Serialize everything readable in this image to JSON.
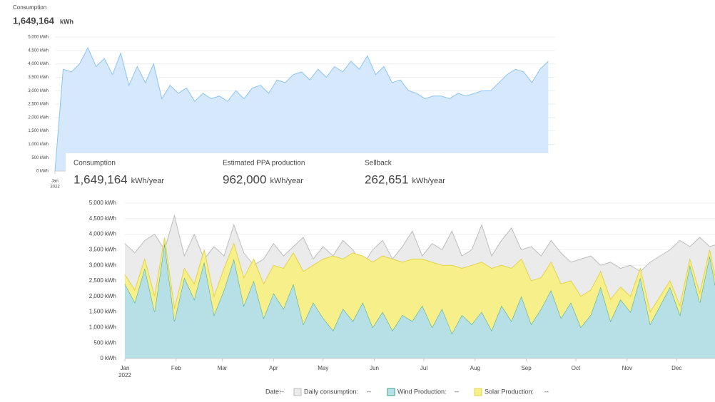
{
  "header": {
    "title": "Consumption",
    "value": "1,649,164",
    "unit": "kWh"
  },
  "stats": [
    {
      "label": "Consumption",
      "value": "1,649,164",
      "unit": "kWh/year"
    },
    {
      "label": "Estimated PPA production",
      "value": "962,000",
      "unit": "kWh/year"
    },
    {
      "label": "Sellback",
      "value": "262,651",
      "unit": "kWh/year"
    }
  ],
  "legend_bar": {
    "date_label": "Date:",
    "placeholder": "--"
  },
  "chart_data": [
    {
      "type": "area",
      "x": [
        0,
        6,
        12,
        18,
        24,
        30,
        36,
        42,
        48,
        54,
        60,
        66,
        72,
        78,
        84,
        90,
        96,
        102,
        108,
        114,
        120,
        126,
        132,
        138,
        144,
        150,
        156,
        162,
        168,
        174,
        180,
        186,
        192,
        198,
        204,
        210,
        216,
        222,
        228,
        234,
        240,
        246,
        252,
        258,
        264,
        270,
        276,
        282,
        288,
        294,
        300,
        306,
        312,
        318,
        324,
        330,
        336,
        342,
        348,
        354,
        360
      ],
      "series": [
        {
          "name": "Consumption",
          "color": "#8cc4f5",
          "fill": "#d6e8fb",
          "values": [
            0,
            3800,
            3700,
            4000,
            4600,
            3900,
            4200,
            3600,
            4400,
            3200,
            3900,
            3300,
            4000,
            2700,
            3200,
            2900,
            3100,
            2600,
            2900,
            2700,
            2800,
            2600,
            3000,
            2700,
            3100,
            3200,
            2900,
            3400,
            3300,
            3600,
            3700,
            3400,
            3800,
            3500,
            3900,
            3700,
            4100,
            3800,
            4300,
            3600,
            3900,
            3300,
            3400,
            3000,
            2900,
            2700,
            2800,
            2800,
            2700,
            2900,
            2800,
            2900,
            3000,
            3000,
            3300,
            3600,
            3800,
            3700,
            3300,
            3800,
            4100
          ]
        }
      ],
      "xlim": [
        0,
        365
      ],
      "xticks": [
        {
          "value": 0,
          "label": "Jan"
        }
      ],
      "x_sublabel": "2022",
      "ylim": [
        0,
        5000
      ],
      "yticks": [
        {
          "value": 0,
          "label": "0 kWh"
        },
        {
          "value": 500,
          "label": "500 kWh"
        },
        {
          "value": 1000,
          "label": "1,000 kWh"
        },
        {
          "value": 1500,
          "label": "1,500 kWh"
        },
        {
          "value": 2000,
          "label": "2,000 kWh"
        },
        {
          "value": 2500,
          "label": "2,500 kWh"
        },
        {
          "value": 3000,
          "label": "3,000 kWh"
        },
        {
          "value": 3500,
          "label": "3,500 kWh"
        },
        {
          "value": 4000,
          "label": "4,000 kWh"
        },
        {
          "value": 4500,
          "label": "4,500 kWh"
        },
        {
          "value": 5000,
          "label": "5,000 kWh"
        }
      ],
      "grid": true
    },
    {
      "type": "area",
      "stacked": true,
      "x": [
        0,
        6,
        12,
        18,
        24,
        30,
        36,
        42,
        48,
        54,
        60,
        66,
        72,
        78,
        84,
        90,
        96,
        102,
        108,
        114,
        120,
        126,
        132,
        138,
        144,
        150,
        156,
        162,
        168,
        174,
        180,
        186,
        192,
        198,
        204,
        210,
        216,
        222,
        228,
        234,
        240,
        246,
        252,
        258,
        264,
        270,
        276,
        282,
        288,
        294,
        300,
        306,
        312,
        318,
        324,
        330,
        336,
        342,
        348,
        354,
        360
      ],
      "series": [
        {
          "name": "Daily consumption:",
          "color": "#bdbdbd",
          "fill": "#ebebeb",
          "stack": false,
          "values": [
            3700,
            3400,
            3800,
            4000,
            3500,
            4600,
            3300,
            4000,
            3200,
            3600,
            3300,
            4300,
            3400,
            3000,
            3200,
            3700,
            3300,
            3600,
            3900,
            3200,
            3600,
            3300,
            3800,
            3500,
            3000,
            3500,
            3800,
            3200,
            3600,
            4100,
            3300,
            3700,
            3500,
            4100,
            3300,
            3500,
            4300,
            3300,
            3800,
            4200,
            3500,
            3600,
            3300,
            3800,
            3400,
            3100,
            3200,
            3300,
            3000,
            3100,
            2900,
            3000,
            2800,
            3100,
            3300,
            3500,
            3800,
            3600,
            3900,
            3600,
            3700
          ]
        },
        {
          "name": "Wind Production:",
          "color": "#3aa88a",
          "fill": "#b7dfe6",
          "stack": true,
          "values": [
            2400,
            1800,
            2900,
            1500,
            3700,
            1200,
            2600,
            1900,
            3100,
            1400,
            2200,
            3200,
            1700,
            2500,
            1300,
            2100,
            1600,
            2400,
            1100,
            1800,
            1300,
            900,
            1600,
            1200,
            1800,
            1000,
            1500,
            900,
            1400,
            1200,
            1700,
            1000,
            1600,
            800,
            1400,
            1100,
            1500,
            900,
            1700,
            1200,
            2000,
            1100,
            1600,
            2200,
            1300,
            1800,
            1000,
            1400,
            2300,
            1200,
            1900,
            1500,
            2600,
            1100,
            1700,
            2300,
            1400,
            3000,
            1800,
            3300,
            1600
          ]
        },
        {
          "name": "Solar Production:",
          "color": "#e3d44a",
          "fill": "#f7ef8a",
          "stack": true,
          "values": [
            300,
            400,
            300,
            500,
            200,
            400,
            300,
            500,
            400,
            600,
            700,
            500,
            900,
            700,
            1100,
            900,
            1300,
            1000,
            1700,
            1200,
            1900,
            2400,
            1600,
            2200,
            1500,
            2100,
            1800,
            2300,
            1700,
            2000,
            1500,
            2100,
            1400,
            2200,
            1500,
            1900,
            1600,
            2000,
            1300,
            1700,
            1200,
            1400,
            1000,
            900,
            1100,
            700,
            1000,
            800,
            500,
            700,
            400,
            500,
            300,
            400,
            300,
            200,
            300,
            200,
            300,
            200,
            300
          ]
        }
      ],
      "xlim": [
        0,
        365
      ],
      "xticks": [
        {
          "value": 0,
          "label": "Jan"
        },
        {
          "value": 31,
          "label": "Feb"
        },
        {
          "value": 59,
          "label": "Mar"
        },
        {
          "value": 90,
          "label": "Apr"
        },
        {
          "value": 120,
          "label": "May"
        },
        {
          "value": 151,
          "label": "Jun"
        },
        {
          "value": 181,
          "label": "Jul"
        },
        {
          "value": 212,
          "label": "Aug"
        },
        {
          "value": 243,
          "label": "Sep"
        },
        {
          "value": 273,
          "label": "Oct"
        },
        {
          "value": 304,
          "label": "Nov"
        },
        {
          "value": 334,
          "label": "Dec"
        }
      ],
      "x_sublabel": "2022",
      "ylim": [
        0,
        5000
      ],
      "yticks": [
        {
          "value": 0,
          "label": "0 kWh"
        },
        {
          "value": 500,
          "label": "500 kWh"
        },
        {
          "value": 1000,
          "label": "1,000 kWh"
        },
        {
          "value": 1500,
          "label": "1,500 kWh"
        },
        {
          "value": 2000,
          "label": "2,000 kWh"
        },
        {
          "value": 2500,
          "label": "2,500 kWh"
        },
        {
          "value": 3000,
          "label": "3,000 kWh"
        },
        {
          "value": 3500,
          "label": "3,500 kWh"
        },
        {
          "value": 4000,
          "label": "4,000 kWh"
        },
        {
          "value": 4500,
          "label": "4,500 kWh"
        },
        {
          "value": 5000,
          "label": "5,000 kWh"
        }
      ],
      "grid": true
    }
  ]
}
